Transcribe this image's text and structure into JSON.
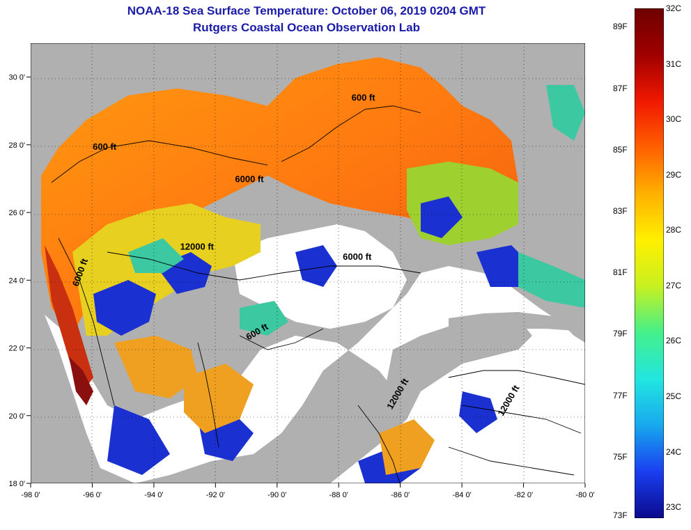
{
  "title": {
    "line1": "NOAA-18 Sea Surface Temperature:  October 06, 2019 0204 GMT",
    "line2": "Rutgers Coastal Ocean Observation Lab"
  },
  "map": {
    "lon_range": [
      -98,
      -80
    ],
    "lat_range": [
      18,
      31
    ],
    "lat_ticks": [
      "30 0'",
      "28 0'",
      "26 0'",
      "24 0'",
      "22 0'",
      "20 0'",
      "18 0'"
    ],
    "lon_ticks": [
      "-98 0'",
      "-96 0'",
      "-94 0'",
      "-92 0'",
      "-90 0'",
      "-88 0'",
      "-86 0'",
      "-84 0'",
      "-82 0'",
      "-80 0'"
    ],
    "contours": [
      {
        "text": "600 ft",
        "lon": -95.6,
        "lat": 27.85
      },
      {
        "text": "600 ft",
        "lon": -87.2,
        "lat": 29.3
      },
      {
        "text": "6000 ft",
        "lon": -90.9,
        "lat": 26.9
      },
      {
        "text": "12000 ft",
        "lon": -92.6,
        "lat": 24.9
      },
      {
        "text": "6000 ft",
        "lon": -87.4,
        "lat": 24.6
      },
      {
        "text": "6000 ft",
        "lon": -96.3,
        "lat": 24.2
      },
      {
        "text": "600 ft",
        "lon": -90.6,
        "lat": 22.4
      },
      {
        "text": "12000 ft",
        "lon": -86.0,
        "lat": 20.6
      },
      {
        "text": "12000 ft",
        "lon": -82.4,
        "lat": 20.4
      }
    ]
  },
  "colorbar": {
    "colors": [
      "#0a0a8c",
      "#1a3ef0",
      "#18a8ee",
      "#22e6e0",
      "#44f08a",
      "#c8f020",
      "#fff000",
      "#ffb000",
      "#ff6000",
      "#f01800",
      "#a00000",
      "#6e0000"
    ],
    "fahrenheit": [
      "89F",
      "87F",
      "85F",
      "83F",
      "81F",
      "79F",
      "77F",
      "75F",
      "73F"
    ],
    "celsius": [
      "32C",
      "31C",
      "30C",
      "29C",
      "28C",
      "27C",
      "26C",
      "25C",
      "24C",
      "23C"
    ]
  }
}
